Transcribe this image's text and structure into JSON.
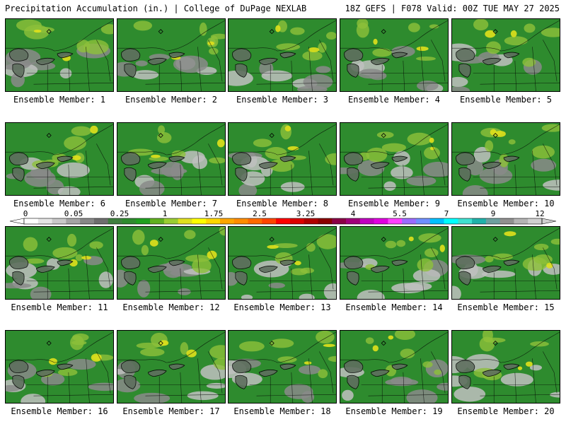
{
  "header": {
    "left": "Precipitation Accumulation (in.) | College of DuPage NEXLAB",
    "right": "18Z GEFS | F078 Valid: 00Z TUE MAY 27 2025"
  },
  "panels": [
    {
      "label": "Ensemble Member: 1"
    },
    {
      "label": "Ensemble Member: 2"
    },
    {
      "label": "Ensemble Member: 3"
    },
    {
      "label": "Ensemble Member: 4"
    },
    {
      "label": "Ensemble Member: 5"
    },
    {
      "label": "Ensemble Member: 6"
    },
    {
      "label": "Ensemble Member: 7"
    },
    {
      "label": "Ensemble Member: 8"
    },
    {
      "label": "Ensemble Member: 9"
    },
    {
      "label": "Ensemble Member: 10"
    },
    {
      "label": "Ensemble Member: 11"
    },
    {
      "label": "Ensemble Member: 12"
    },
    {
      "label": "Ensemble Member: 13"
    },
    {
      "label": "Ensemble Member: 14"
    },
    {
      "label": "Ensemble Member: 15"
    },
    {
      "label": "Ensemble Member: 16"
    },
    {
      "label": "Ensemble Member: 17"
    },
    {
      "label": "Ensemble Member: 18"
    },
    {
      "label": "Ensemble Member: 19"
    },
    {
      "label": "Ensemble Member: 20"
    }
  ],
  "colorbar": {
    "tick_labels": [
      "0",
      "0.05",
      "0.25",
      "1",
      "1.75",
      "2.5",
      "3.25",
      "4",
      "5.5",
      "7",
      "9",
      "12"
    ],
    "colors": [
      "#ffffff",
      "#e4e4e4",
      "#c8c8c8",
      "#a4a4a4",
      "#888888",
      "#6e6e6e",
      "#3f7f3f",
      "#2e8b2e",
      "#1fa01f",
      "#60b020",
      "#9acd32",
      "#e0e020",
      "#ffff00",
      "#ffd700",
      "#ffa500",
      "#ff8c00",
      "#ff6a00",
      "#ff4500",
      "#ff0000",
      "#dc0000",
      "#b00000",
      "#8b0000",
      "#8b0046",
      "#a0007a",
      "#c000c0",
      "#e000e0",
      "#ff40ff",
      "#9b6bff",
      "#6f8fff",
      "#00c0ff",
      "#00ffff",
      "#40e0d0",
      "#20b2aa",
      "#6ea0a0",
      "#909090",
      "#b4b4b4",
      "#d0d0d0"
    ]
  },
  "palette": {
    "base_green": "#2e8b2e",
    "mid_green": "#3e9a2e",
    "light_green": "#8dc03a",
    "yellow": "#e0e01c",
    "gray_light": "#c0c0c0",
    "gray_mid": "#8a8a8a",
    "gray_dark": "#5f6f5f"
  }
}
